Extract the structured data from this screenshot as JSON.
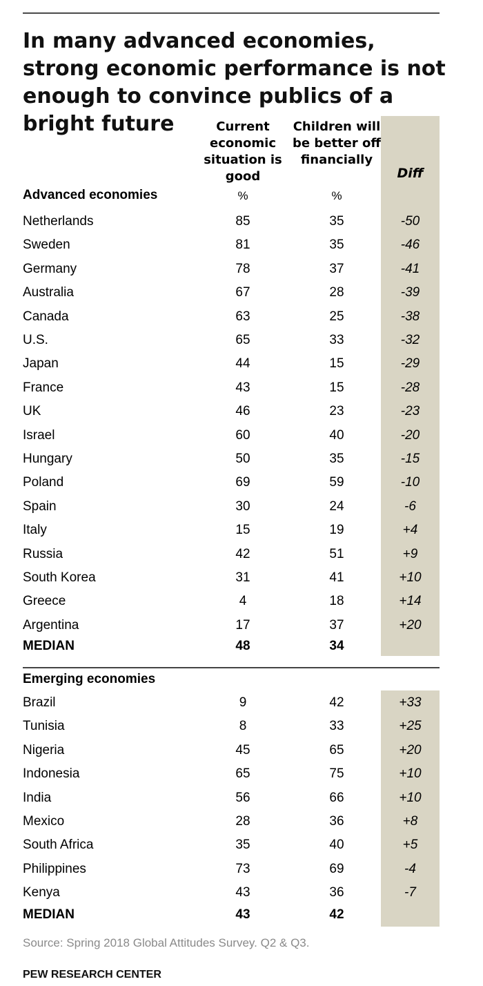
{
  "title": "In many advanced economies, strong economic performance is not enough to convince publics of a bright future",
  "columns": {
    "current": "Current economic situation is good",
    "children": "Children will be better off financially",
    "diff": "Diff"
  },
  "unit": "%",
  "chart_data": {
    "type": "table",
    "columns": [
      "Current economic situation is good",
      "Children will be better off financially",
      "Diff"
    ],
    "groups": [
      {
        "name": "Advanced economies",
        "rows": [
          {
            "country": "Netherlands",
            "current": "85",
            "children": "35",
            "diff": "-50"
          },
          {
            "country": "Sweden",
            "current": "81",
            "children": "35",
            "diff": "-46"
          },
          {
            "country": "Germany",
            "current": "78",
            "children": "37",
            "diff": "-41"
          },
          {
            "country": "Australia",
            "current": "67",
            "children": "28",
            "diff": "-39"
          },
          {
            "country": "Canada",
            "current": "63",
            "children": "25",
            "diff": "-38"
          },
          {
            "country": "U.S.",
            "current": "65",
            "children": "33",
            "diff": "-32"
          },
          {
            "country": "Japan",
            "current": "44",
            "children": "15",
            "diff": "-29"
          },
          {
            "country": "France",
            "current": "43",
            "children": "15",
            "diff": "-28"
          },
          {
            "country": "UK",
            "current": "46",
            "children": "23",
            "diff": "-23"
          },
          {
            "country": "Israel",
            "current": "60",
            "children": "40",
            "diff": "-20"
          },
          {
            "country": "Hungary",
            "current": "50",
            "children": "35",
            "diff": "-15"
          },
          {
            "country": "Poland",
            "current": "69",
            "children": "59",
            "diff": "-10"
          },
          {
            "country": "Spain",
            "current": "30",
            "children": "24",
            "diff": "-6"
          },
          {
            "country": "Italy",
            "current": "15",
            "children": "19",
            "diff": "+4"
          },
          {
            "country": "Russia",
            "current": "42",
            "children": "51",
            "diff": "+9"
          },
          {
            "country": "South Korea",
            "current": "31",
            "children": "41",
            "diff": "+10"
          },
          {
            "country": "Greece",
            "current": "4",
            "children": "18",
            "diff": "+14"
          },
          {
            "country": "Argentina",
            "current": "17",
            "children": "37",
            "diff": "+20"
          }
        ],
        "median": {
          "label": "MEDIAN",
          "current": "48",
          "children": "34"
        }
      },
      {
        "name": "Emerging economies",
        "rows": [
          {
            "country": "Brazil",
            "current": "9",
            "children": "42",
            "diff": "+33"
          },
          {
            "country": "Tunisia",
            "current": "8",
            "children": "33",
            "diff": "+25"
          },
          {
            "country": "Nigeria",
            "current": "45",
            "children": "65",
            "diff": "+20"
          },
          {
            "country": "Indonesia",
            "current": "65",
            "children": "75",
            "diff": "+10"
          },
          {
            "country": "India",
            "current": "56",
            "children": "66",
            "diff": "+10"
          },
          {
            "country": "Mexico",
            "current": "28",
            "children": "36",
            "diff": "+8"
          },
          {
            "country": "South Africa",
            "current": "35",
            "children": "40",
            "diff": "+5"
          },
          {
            "country": "Philippines",
            "current": "73",
            "children": "69",
            "diff": "-4"
          },
          {
            "country": "Kenya",
            "current": "43",
            "children": "36",
            "diff": "-7"
          }
        ],
        "median": {
          "label": "MEDIAN",
          "current": "43",
          "children": "42"
        }
      }
    ]
  },
  "source": "Source: Spring 2018 Global Attitudes Survey. Q2 & Q3.",
  "brand": "PEW RESEARCH CENTER",
  "colors": {
    "diff_band": "#d9d5c4",
    "source_text": "#8a8a8a"
  }
}
